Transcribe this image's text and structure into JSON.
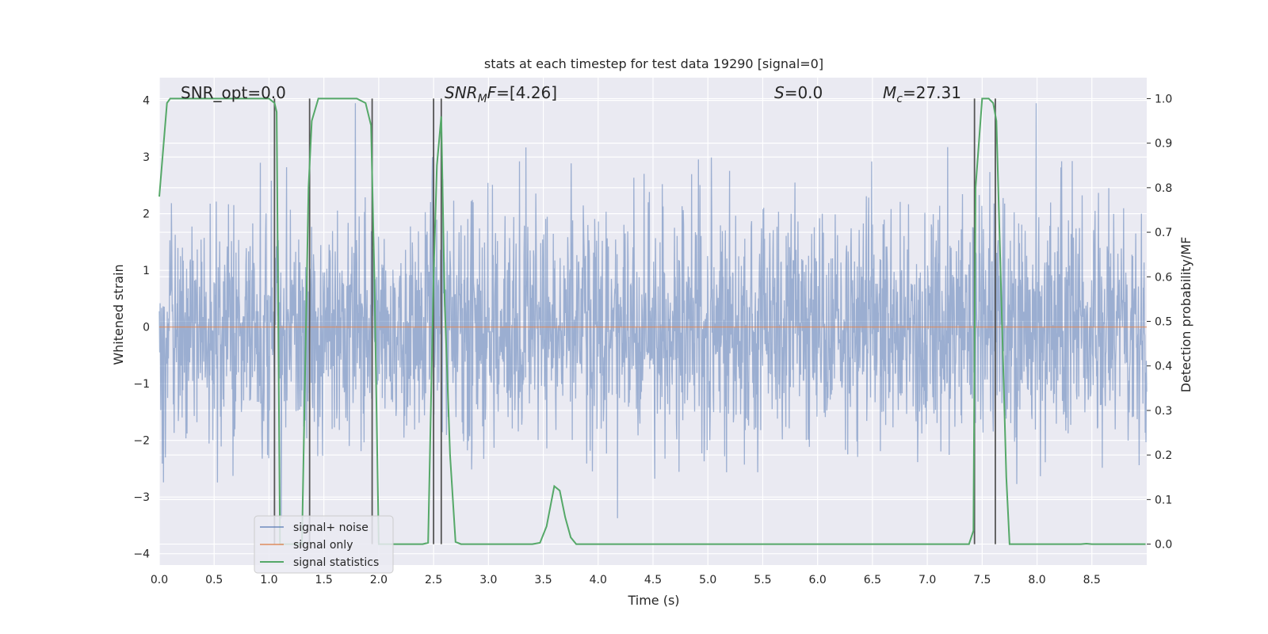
{
  "chart_data": {
    "type": "line",
    "title": "stats at each timestep for test data 19290 [signal=0]",
    "xlabel": "Time (s)",
    "ylabel_left": "Whitened strain",
    "ylabel_right": "Detection probability/MF",
    "xlim": [
      0,
      9.0
    ],
    "ylim_left": [
      -4.2,
      4.4
    ],
    "ylim_right": [
      -0.047,
      1.047
    ],
    "x_ticks": [
      "0.0",
      "0.5",
      "1.0",
      "1.5",
      "2.0",
      "2.5",
      "3.0",
      "3.5",
      "4.0",
      "4.5",
      "5.0",
      "5.5",
      "6.0",
      "6.5",
      "7.0",
      "7.5",
      "8.0",
      "8.5"
    ],
    "y_ticks_left": [
      "−4",
      "−3",
      "−2",
      "−1",
      "0",
      "1",
      "2",
      "3",
      "4"
    ],
    "y_ticks_right": [
      "0.0",
      "0.1",
      "0.2",
      "0.3",
      "0.4",
      "0.5",
      "0.6",
      "0.7",
      "0.8",
      "0.9",
      "1.0"
    ],
    "grid": true,
    "legend_position": "lower-left",
    "series": [
      {
        "name": "signal+ noise",
        "color": "#4c72b0",
        "axis": "left",
        "kind": "noise",
        "note_envelope": [
          -4.0,
          4.0
        ]
      },
      {
        "name": "signal only",
        "color": "#dd8452",
        "axis": "left",
        "values_constant": 0.0
      },
      {
        "name": "signal statistics",
        "color": "#55a868",
        "axis": "right",
        "x": [
          0.0,
          0.07,
          0.1,
          0.3,
          0.5,
          0.7,
          0.9,
          1.0,
          1.05,
          1.07,
          1.1,
          1.2,
          1.3,
          1.36,
          1.39,
          1.45,
          1.5,
          1.6,
          1.7,
          1.8,
          1.88,
          1.93,
          1.96,
          2.0,
          2.05,
          2.1,
          2.2,
          2.3,
          2.4,
          2.45,
          2.5,
          2.53,
          2.57,
          2.6,
          2.65,
          2.7,
          2.75,
          3.0,
          3.2,
          3.4,
          3.47,
          3.53,
          3.6,
          3.65,
          3.7,
          3.75,
          3.8,
          4.0,
          4.5,
          5.0,
          5.5,
          6.0,
          6.5,
          7.0,
          7.2,
          7.38,
          7.42,
          7.44,
          7.5,
          7.56,
          7.6,
          7.63,
          7.68,
          7.72,
          7.75,
          7.8,
          8.0,
          8.2,
          8.4,
          8.45,
          8.5,
          8.7,
          8.9,
          8.99
        ],
        "values": [
          0.78,
          0.99,
          1.0,
          1.0,
          1.0,
          1.0,
          1.0,
          1.0,
          0.99,
          0.97,
          0.0,
          0.0,
          0.0,
          0.8,
          0.95,
          1.0,
          1.0,
          1.0,
          1.0,
          1.0,
          0.99,
          0.94,
          0.6,
          0.0,
          0.0,
          0.0,
          0.0,
          0.0,
          0.0,
          0.003,
          0.6,
          0.85,
          0.96,
          0.55,
          0.2,
          0.005,
          0.0,
          0.0,
          0.0,
          0.0,
          0.003,
          0.04,
          0.13,
          0.12,
          0.06,
          0.015,
          0.0,
          0.0,
          0.0,
          0.0,
          0.0,
          0.0,
          0.0,
          0.0,
          0.0,
          0.0,
          0.03,
          0.8,
          1.0,
          1.0,
          0.99,
          0.95,
          0.5,
          0.15,
          0.0,
          0.0,
          0.0,
          0.0,
          0.0,
          0.001,
          0.0,
          0.0,
          0.0,
          0.0
        ]
      }
    ],
    "vlines": [
      1.05,
      1.37,
      1.94,
      2.5,
      2.57,
      7.43,
      7.62
    ],
    "annotations": [
      {
        "text": "SNR_opt=0.0",
        "x": 0.2,
        "y": 1.0
      },
      {
        "text": "SNR_MF=[4.26]",
        "x": 2.6,
        "y": 1.0
      },
      {
        "text": "S=0.0",
        "x": 5.6,
        "y": 1.0
      },
      {
        "text": "M_c=27.31",
        "x": 6.6,
        "y": 1.0
      }
    ]
  },
  "legend": {
    "items": [
      "signal+ noise",
      "signal only",
      "signal statistics"
    ]
  },
  "annotations_text": {
    "snr_opt": "SNR_opt=0.0",
    "snr_mf_prefix": "SNR",
    "snr_mf_sub": "M",
    "snr_mf_mid": "F",
    "snr_mf_value": "=[4.26]",
    "s_var": "S",
    "s_value": "=0.0",
    "mc_var": "M",
    "mc_sub": "c",
    "mc_value": "=27.31"
  },
  "colors": {
    "plot_bg": "#eaeaf2",
    "grid": "#ffffff",
    "noise": "#4c72b0",
    "signal_only": "#dd8452",
    "statistic": "#55a868",
    "vline": "#555555"
  }
}
